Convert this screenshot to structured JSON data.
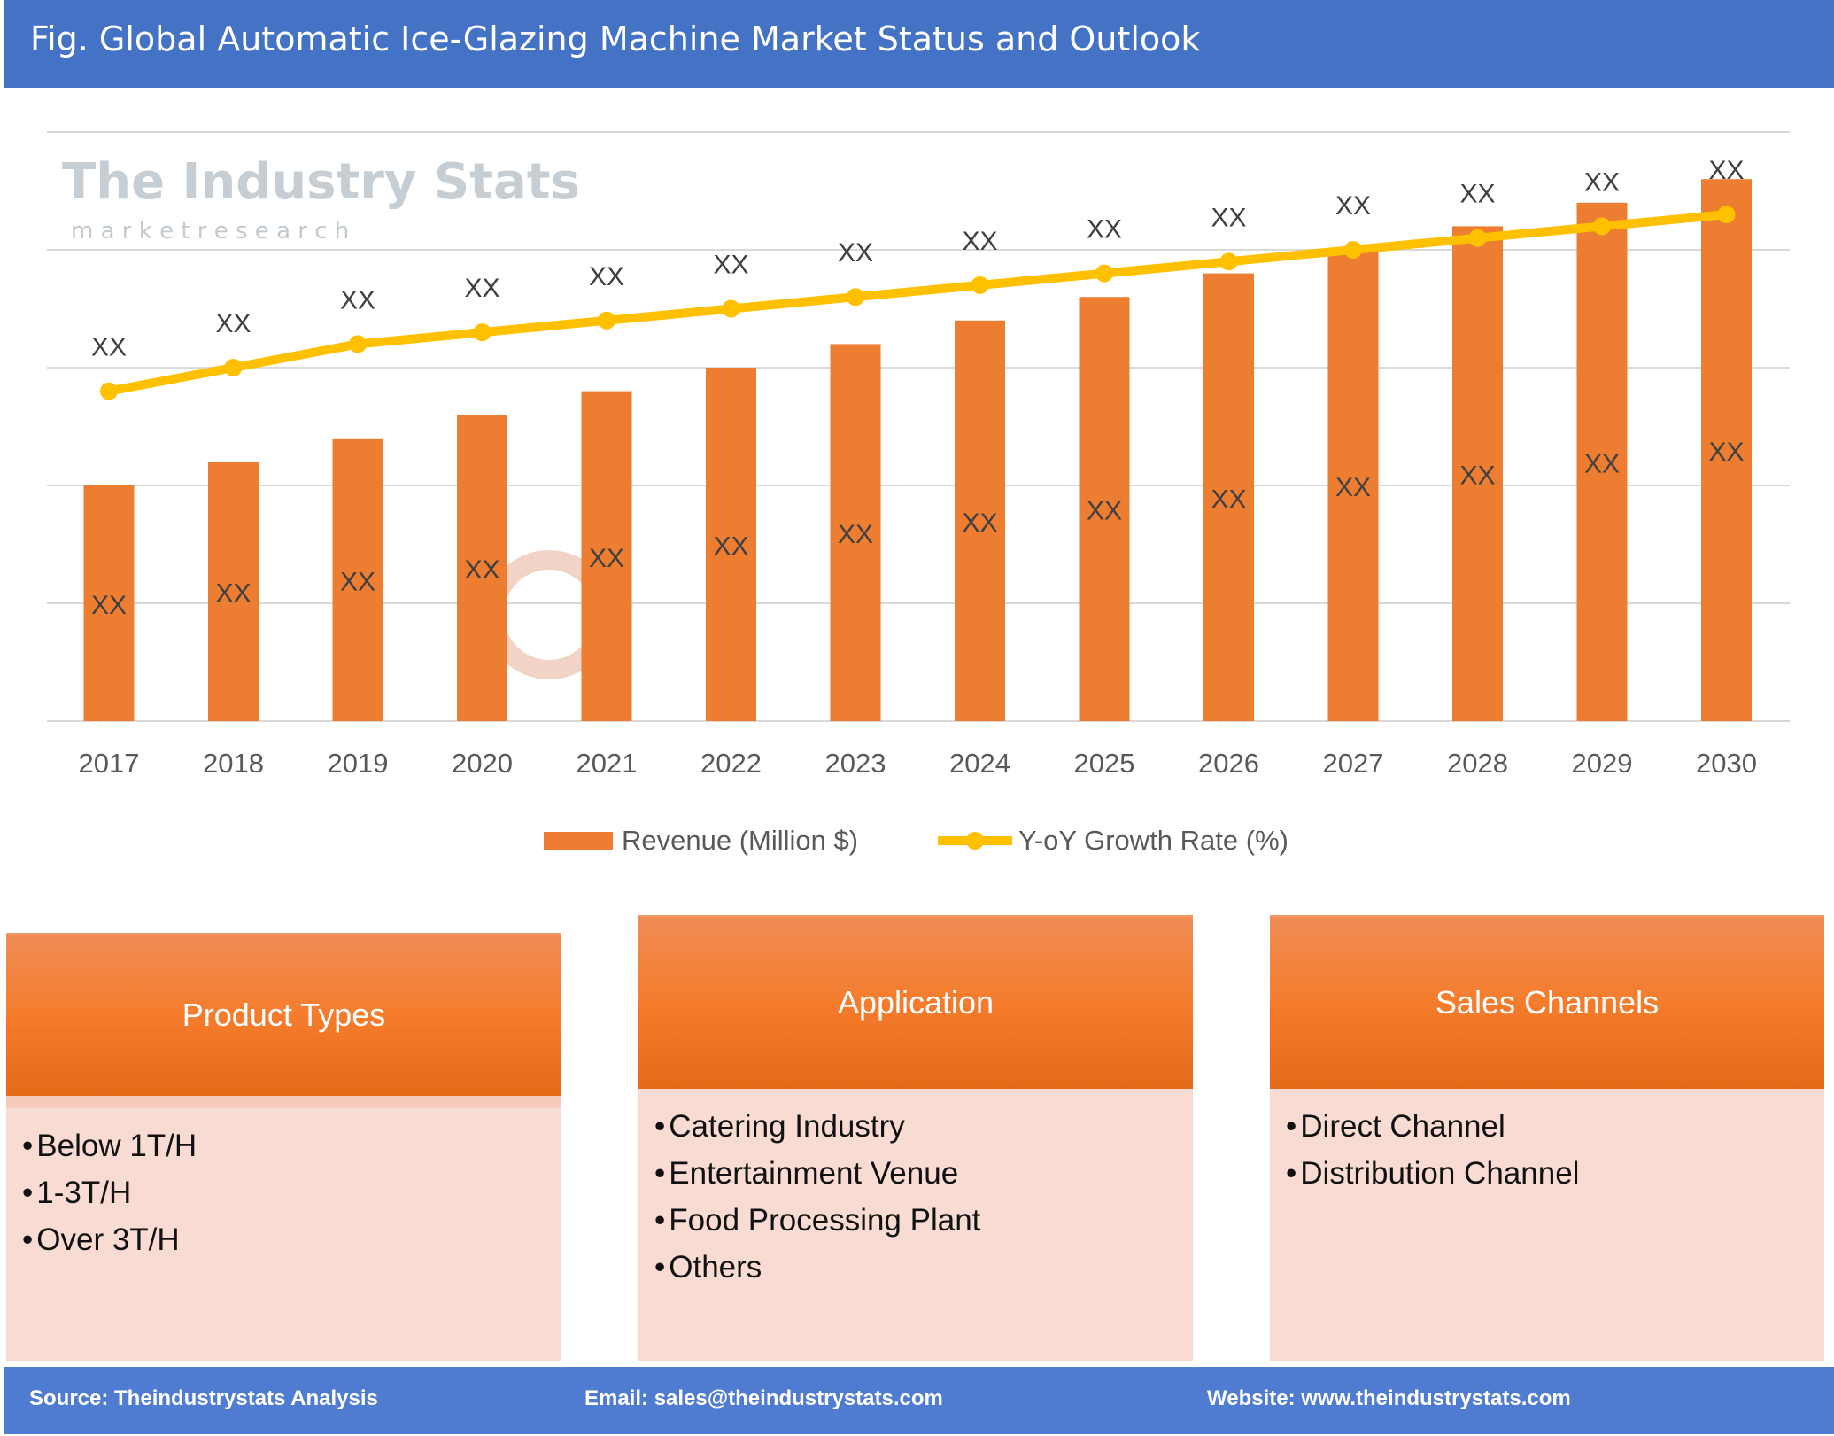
{
  "header": {
    "title": "Fig. Global Automatic Ice-Glazing Machine Market Status and Outlook"
  },
  "watermark": {
    "name": "The Industry Stats",
    "tagline": "m a r k e t   r e s e a r c h"
  },
  "chart_data": {
    "type": "bar+line",
    "categories": [
      "2017",
      "2018",
      "2019",
      "2020",
      "2021",
      "2022",
      "2023",
      "2024",
      "2025",
      "2026",
      "2027",
      "2028",
      "2029",
      "2030"
    ],
    "series": [
      {
        "name": "Revenue (Million $)",
        "type": "bar",
        "color": "#ed7d31",
        "values": [
          20,
          22,
          24,
          26,
          28,
          30,
          32,
          34,
          36,
          38,
          40,
          42,
          44,
          46
        ],
        "labels": [
          "XX",
          "XX",
          "XX",
          "XX",
          "XX",
          "XX",
          "XX",
          "XX",
          "XX",
          "XX",
          "XX",
          "XX",
          "XX",
          "XX"
        ]
      },
      {
        "name": "Y-oY Growth Rate (%)",
        "type": "line",
        "color": "#ffc000",
        "values": [
          28,
          30,
          32,
          33,
          34,
          35,
          36,
          37,
          38,
          39,
          40,
          41,
          42,
          43
        ],
        "labels": [
          "XX",
          "XX",
          "XX",
          "XX",
          "XX",
          "XX",
          "XX",
          "XX",
          "XX",
          "XX",
          "XX",
          "XX",
          "XX",
          "XX"
        ]
      }
    ],
    "ylim": [
      0,
      50
    ],
    "grid": true,
    "legend": "bottom"
  },
  "boxes": [
    {
      "title": "Product Types",
      "items": [
        "Below 1T/H",
        "1-3T/H",
        "Over 3T/H"
      ]
    },
    {
      "title": "Application",
      "items": [
        "Catering Industry",
        "Entertainment Venue",
        "Food Processing Plant",
        "Others"
      ]
    },
    {
      "title": "Sales Channels",
      "items": [
        "Direct Channel",
        "Distribution Channel"
      ]
    }
  ],
  "footer": {
    "source": "Source: Theindustrystats Analysis",
    "email": "Email: sales@theindustrystats.com",
    "website": "Website: www.theindustrystats.com"
  }
}
